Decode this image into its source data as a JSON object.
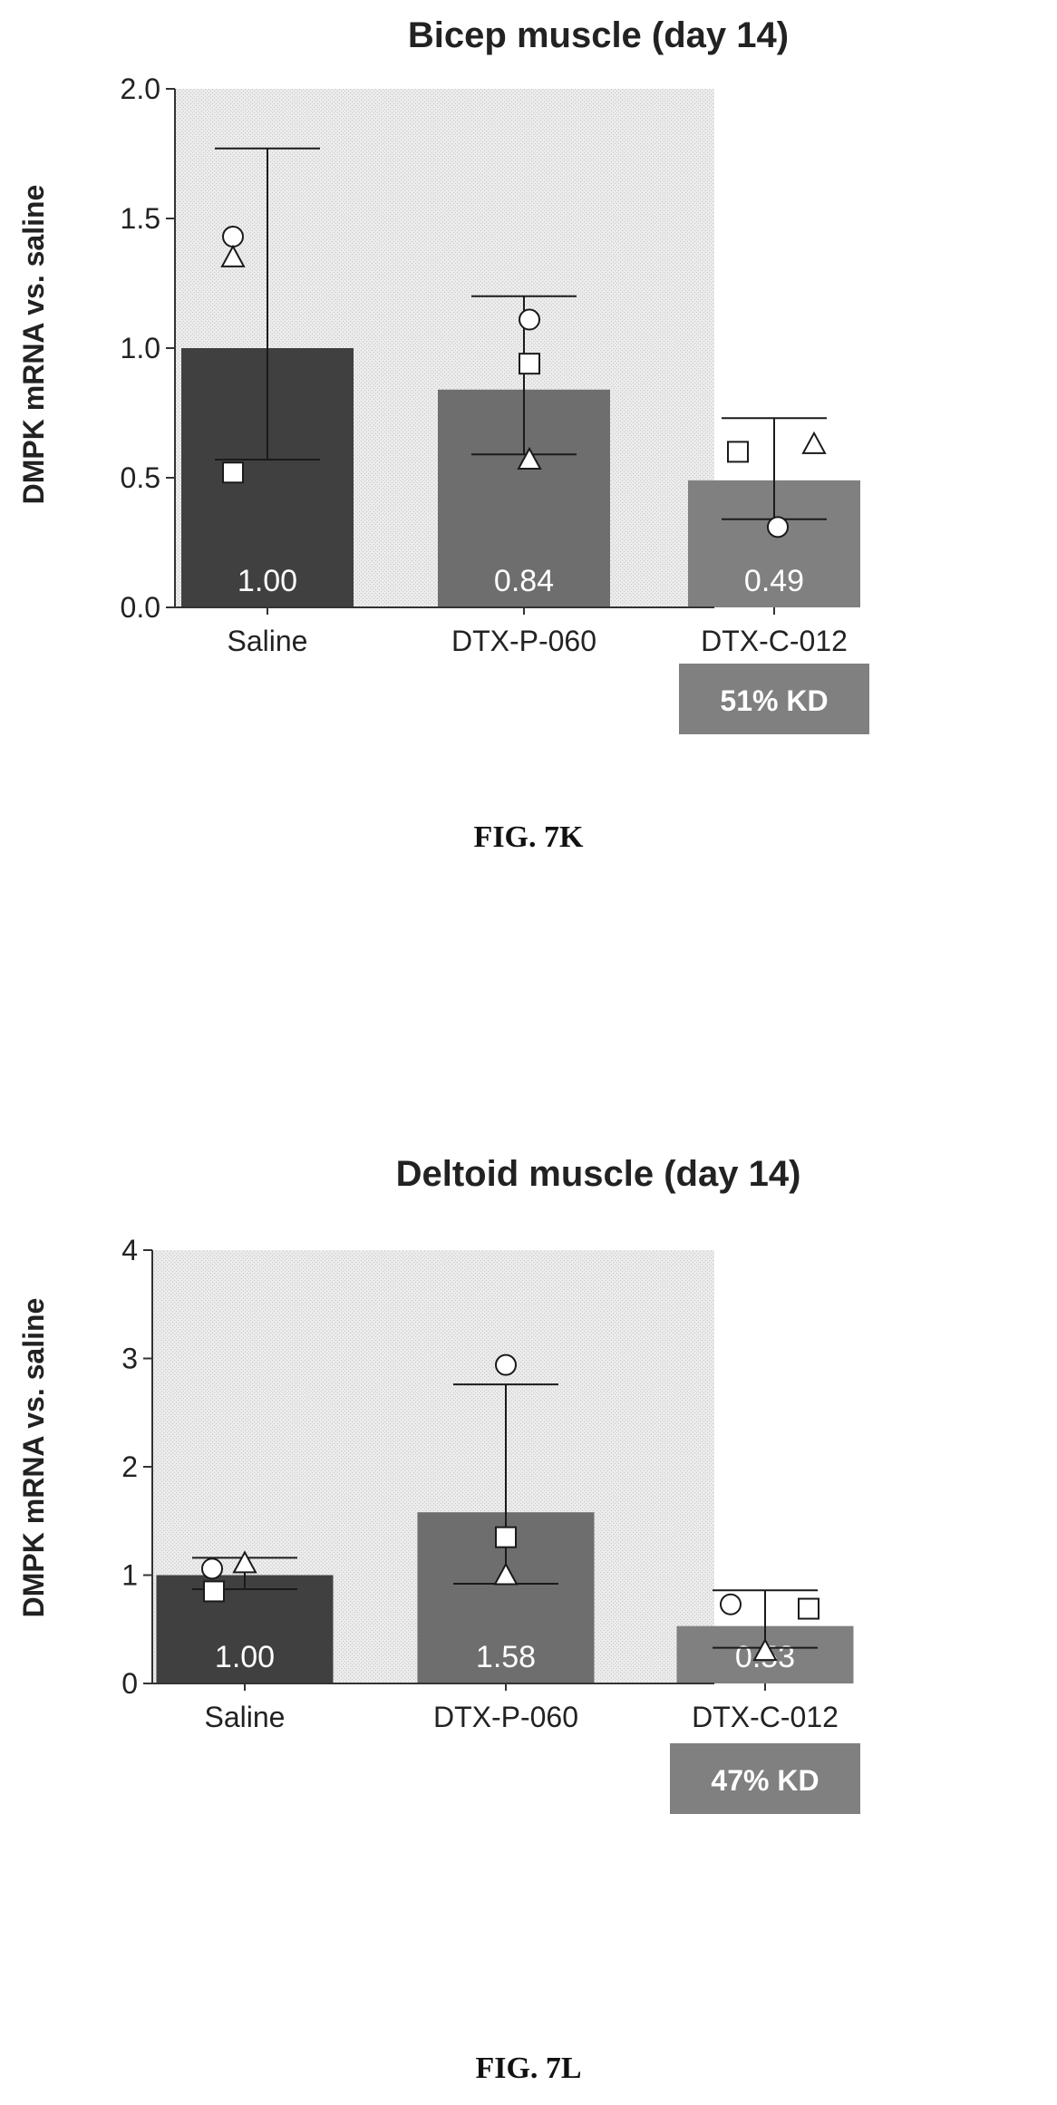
{
  "chart_data": [
    {
      "type": "bar",
      "title": "Bicep muscle (day 14)",
      "ylabel": "DMPK mRNA vs. saline",
      "xlabel": "",
      "ylim": [
        0,
        2.0
      ],
      "yticks": [
        "0.0",
        "0.5",
        "1.0",
        "1.5",
        "2.0"
      ],
      "categories": [
        "Saline",
        "DTX-P-060",
        "DTX-C-012"
      ],
      "values": [
        1.0,
        0.84,
        0.49
      ],
      "value_labels": [
        "1.00",
        "0.84",
        "0.49"
      ],
      "error_upper": [
        1.77,
        1.2,
        0.73
      ],
      "error_lower": [
        0.57,
        0.59,
        0.34
      ],
      "points": {
        "circle": [
          1.43,
          1.11,
          0.31
        ],
        "triangle": [
          1.35,
          0.57,
          0.63
        ],
        "square": [
          0.52,
          0.94,
          0.6
        ]
      },
      "bar_colors": [
        "#404040",
        "#6e6e6e",
        "#808080"
      ],
      "badge": {
        "text": "51% KD",
        "category": "DTX-C-012",
        "color": "#808080"
      },
      "caption": "FIG. 7K",
      "grid": false
    },
    {
      "type": "bar",
      "title": "Deltoid muscle (day 14)",
      "ylabel": "DMPK mRNA vs. saline",
      "xlabel": "",
      "ylim": [
        0,
        4
      ],
      "yticks": [
        "0",
        "1",
        "2",
        "3",
        "4"
      ],
      "categories": [
        "Saline",
        "DTX-P-060",
        "DTX-C-012"
      ],
      "values": [
        1.0,
        1.58,
        0.53
      ],
      "value_labels": [
        "1.00",
        "1.58",
        "0.53"
      ],
      "error_upper": [
        1.16,
        2.76,
        0.86
      ],
      "error_lower": [
        0.87,
        0.92,
        0.33
      ],
      "points": {
        "circle": [
          1.06,
          2.94,
          0.73
        ],
        "triangle": [
          1.11,
          1.0,
          0.3
        ],
        "square": [
          0.85,
          1.35,
          0.69
        ]
      },
      "bar_colors": [
        "#404040",
        "#6e6e6e",
        "#808080"
      ],
      "badge": {
        "text": "47% KD",
        "category": "DTX-C-012",
        "color": "#808080"
      },
      "caption": "FIG. 7L",
      "grid": false
    }
  ]
}
